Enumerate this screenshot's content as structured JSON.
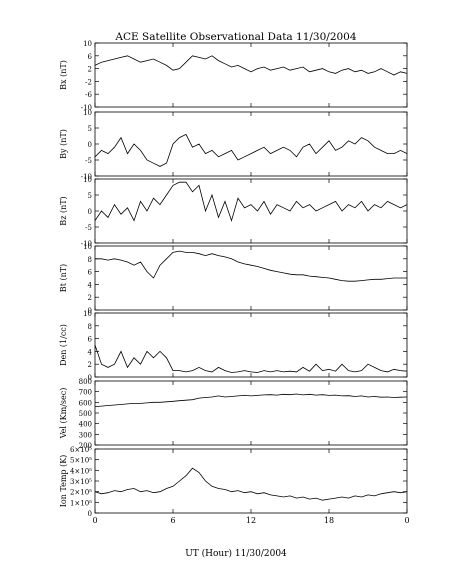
{
  "title": "ACE Satellite Observational Data   11/30/2004",
  "xlabel": "UT (Hour)   11/30/2004",
  "chart_data": {
    "type": "line",
    "title": "ACE Satellite Observational Data   11/30/2004",
    "xlabel": "UT (Hour)   11/30/2004",
    "x_ticks": [
      "0",
      "6",
      "12",
      "18",
      "0"
    ],
    "x_tick_values": [
      0,
      6,
      12,
      18,
      24
    ],
    "xlim": [
      0,
      24
    ],
    "grid": false,
    "panels": [
      {
        "ylabel": "Bx (nT)",
        "ylim": [
          -10,
          10
        ],
        "y_ticks": [
          "10",
          "6",
          "2",
          "-2",
          "-6",
          "-10"
        ],
        "y_tick_values": [
          10,
          6,
          2,
          -2,
          -6,
          -10
        ],
        "x": [
          0,
          0.5,
          1,
          1.5,
          2,
          2.5,
          3,
          3.5,
          4,
          4.5,
          5,
          5.5,
          6,
          6.5,
          7,
          7.5,
          8,
          8.5,
          9,
          9.5,
          10,
          10.5,
          11,
          11.5,
          12,
          12.5,
          13,
          13.5,
          14,
          14.5,
          15,
          15.5,
          16,
          16.5,
          17,
          17.5,
          18,
          18.5,
          19,
          19.5,
          20,
          20.5,
          21,
          21.5,
          22,
          22.5,
          23,
          23.5,
          24
        ],
        "y": [
          3,
          4,
          4.5,
          5,
          5.5,
          6,
          5,
          4,
          4.5,
          5,
          4,
          3,
          1.5,
          2,
          4,
          6,
          5.5,
          5,
          6,
          4.5,
          3.5,
          2.5,
          3,
          2,
          1,
          2,
          2.5,
          1.5,
          2,
          2.5,
          1.5,
          2,
          2.5,
          1,
          1.5,
          2,
          1,
          0.5,
          1.5,
          2,
          1,
          1.5,
          0.5,
          1,
          2,
          1,
          0,
          1,
          0.5
        ]
      },
      {
        "ylabel": "By (nT)",
        "ylim": [
          -10,
          10
        ],
        "y_ticks": [
          "10",
          "5",
          "0",
          "-5",
          "-10"
        ],
        "y_tick_values": [
          10,
          5,
          0,
          -5,
          -10
        ],
        "x": [
          0,
          0.5,
          1,
          1.5,
          2,
          2.5,
          3,
          3.5,
          4,
          4.5,
          5,
          5.5,
          6,
          6.5,
          7,
          7.5,
          8,
          8.5,
          9,
          9.5,
          10,
          10.5,
          11,
          11.5,
          12,
          12.5,
          13,
          13.5,
          14,
          14.5,
          15,
          15.5,
          16,
          16.5,
          17,
          17.5,
          18,
          18.5,
          19,
          19.5,
          20,
          20.5,
          21,
          21.5,
          22,
          22.5,
          23,
          23.5,
          24
        ],
        "y": [
          -4,
          -2,
          -3,
          -1,
          2,
          -3,
          0,
          -2,
          -5,
          -6,
          -7,
          -6,
          0,
          2,
          3,
          -1,
          0,
          -3,
          -2,
          -4,
          -3,
          -2,
          -5,
          -4,
          -3,
          -2,
          -1,
          -3,
          -2,
          -1,
          -2,
          -4,
          -1,
          0,
          -3,
          -1,
          1,
          -2,
          -1,
          1,
          0,
          2,
          1,
          -1,
          -2,
          -3,
          -3,
          -2,
          -3
        ]
      },
      {
        "ylabel": "Bz (nT)",
        "ylim": [
          -10,
          10
        ],
        "y_ticks": [
          "10",
          "5",
          "0",
          "-5",
          "-10"
        ],
        "y_tick_values": [
          10,
          5,
          0,
          -5,
          -10
        ],
        "x": [
          0,
          0.5,
          1,
          1.5,
          2,
          2.5,
          3,
          3.5,
          4,
          4.5,
          5,
          5.5,
          6,
          6.5,
          7,
          7.5,
          8,
          8.5,
          9,
          9.5,
          10,
          10.5,
          11,
          11.5,
          12,
          12.5,
          13,
          13.5,
          14,
          14.5,
          15,
          15.5,
          16,
          16.5,
          17,
          17.5,
          18,
          18.5,
          19,
          19.5,
          20,
          20.5,
          21,
          21.5,
          22,
          22.5,
          23,
          23.5,
          24
        ],
        "y": [
          -3,
          0,
          -2,
          2,
          -1,
          1,
          -3,
          3,
          0,
          4,
          2,
          5,
          8,
          9,
          9,
          6,
          8,
          0,
          5,
          -2,
          3,
          -3,
          4,
          1,
          2,
          0,
          3,
          -1,
          2,
          1,
          0,
          3,
          1,
          2,
          0,
          1,
          2,
          3,
          0,
          2,
          1,
          3,
          0,
          2,
          1,
          3,
          2,
          1,
          2
        ]
      },
      {
        "ylabel": "Bt (nT)",
        "ylim": [
          0,
          10
        ],
        "y_ticks": [
          "10",
          "8",
          "6",
          "4",
          "2",
          "0"
        ],
        "y_tick_values": [
          10,
          8,
          6,
          4,
          2,
          0
        ],
        "x": [
          0,
          0.5,
          1,
          1.5,
          2,
          2.5,
          3,
          3.5,
          4,
          4.5,
          5,
          5.5,
          6,
          6.5,
          7,
          7.5,
          8,
          8.5,
          9,
          9.5,
          10,
          10.5,
          11,
          11.5,
          12,
          12.5,
          13,
          13.5,
          14,
          14.5,
          15,
          15.5,
          16,
          16.5,
          17,
          17.5,
          18,
          18.5,
          19,
          19.5,
          20,
          20.5,
          21,
          21.5,
          22,
          22.5,
          23,
          23.5,
          24
        ],
        "y": [
          8,
          8,
          7.8,
          8,
          7.8,
          7.5,
          7,
          7.5,
          6,
          5,
          7,
          8,
          9,
          9.2,
          9,
          9,
          8.8,
          8.5,
          8.8,
          8.5,
          8.3,
          8,
          7.5,
          7.2,
          7,
          6.8,
          6.5,
          6.2,
          6,
          5.8,
          5.6,
          5.5,
          5.5,
          5.3,
          5.2,
          5.1,
          5,
          4.8,
          4.6,
          4.5,
          4.5,
          4.6,
          4.7,
          4.8,
          4.8,
          4.9,
          5,
          5,
          5
        ]
      },
      {
        "ylabel": "Den (1/cc)",
        "ylim": [
          0,
          10
        ],
        "y_ticks": [
          "10",
          "8",
          "6",
          "4",
          "2",
          "0"
        ],
        "y_tick_values": [
          10,
          8,
          6,
          4,
          2,
          0
        ],
        "x": [
          0,
          0.5,
          1,
          1.5,
          2,
          2.5,
          3,
          3.5,
          4,
          4.5,
          5,
          5.5,
          6,
          6.5,
          7,
          7.5,
          8,
          8.5,
          9,
          9.5,
          10,
          10.5,
          11,
          11.5,
          12,
          12.5,
          13,
          13.5,
          14,
          14.5,
          15,
          15.5,
          16,
          16.5,
          17,
          17.5,
          18,
          18.5,
          19,
          19.5,
          20,
          20.5,
          21,
          21.5,
          22,
          22.5,
          23,
          23.5,
          24
        ],
        "y": [
          5,
          2,
          1.5,
          2,
          4,
          1.5,
          3,
          2,
          4,
          3,
          4,
          3,
          1,
          1,
          0.8,
          1,
          1.5,
          1,
          0.8,
          1.5,
          1,
          0.7,
          0.8,
          1,
          0.8,
          0.7,
          1,
          0.8,
          1,
          0.8,
          0.9,
          0.8,
          1.5,
          0.9,
          2,
          1,
          1.2,
          0.9,
          2,
          1,
          0.8,
          1,
          2,
          1.5,
          1,
          0.8,
          1.2,
          1,
          0.9
        ]
      },
      {
        "ylabel": "Vel (Km/sec)",
        "ylim": [
          200,
          800
        ],
        "y_ticks": [
          "800",
          "700",
          "600",
          "500",
          "400",
          "300",
          "200"
        ],
        "y_tick_values": [
          800,
          700,
          600,
          500,
          400,
          300,
          200
        ],
        "x": [
          0,
          0.5,
          1,
          1.5,
          2,
          2.5,
          3,
          3.5,
          4,
          4.5,
          5,
          5.5,
          6,
          6.5,
          7,
          7.5,
          8,
          8.5,
          9,
          9.5,
          10,
          10.5,
          11,
          11.5,
          12,
          12.5,
          13,
          13.5,
          14,
          14.5,
          15,
          15.5,
          16,
          16.5,
          17,
          17.5,
          18,
          18.5,
          19,
          19.5,
          20,
          20.5,
          21,
          21.5,
          22,
          22.5,
          23,
          23.5,
          24
        ],
        "y": [
          560,
          565,
          570,
          575,
          580,
          585,
          590,
          590,
          595,
          600,
          600,
          605,
          610,
          615,
          620,
          625,
          640,
          645,
          650,
          660,
          650,
          655,
          660,
          665,
          660,
          665,
          670,
          672,
          668,
          675,
          672,
          678,
          670,
          675,
          668,
          672,
          665,
          668,
          660,
          662,
          655,
          660,
          650,
          655,
          648,
          650,
          645,
          648,
          650
        ]
      },
      {
        "ylabel": "Ion Temp (K)",
        "ylim": [
          0,
          600000
        ],
        "y_ticks": [
          "6×10⁵",
          "5×10⁵",
          "4×10⁵",
          "3×10⁵",
          "2×10⁵",
          "1×10⁵",
          "0"
        ],
        "y_tick_values": [
          600000,
          500000,
          400000,
          300000,
          200000,
          100000,
          0
        ],
        "x": [
          0,
          0.5,
          1,
          1.5,
          2,
          2.5,
          3,
          3.5,
          4,
          4.5,
          5,
          5.5,
          6,
          6.5,
          7,
          7.5,
          8,
          8.5,
          9,
          9.5,
          10,
          10.5,
          11,
          11.5,
          12,
          12.5,
          13,
          13.5,
          14,
          14.5,
          15,
          15.5,
          16,
          16.5,
          17,
          17.5,
          18,
          18.5,
          19,
          19.5,
          20,
          20.5,
          21,
          21.5,
          22,
          22.5,
          23,
          23.5,
          24
        ],
        "y": [
          200000,
          180000,
          190000,
          210000,
          200000,
          220000,
          230000,
          200000,
          210000,
          190000,
          200000,
          230000,
          250000,
          300000,
          350000,
          420000,
          380000,
          300000,
          250000,
          230000,
          220000,
          200000,
          210000,
          190000,
          200000,
          180000,
          190000,
          170000,
          160000,
          150000,
          160000,
          140000,
          150000,
          130000,
          140000,
          120000,
          130000,
          140000,
          150000,
          140000,
          160000,
          150000,
          170000,
          160000,
          180000,
          190000,
          200000,
          190000,
          200000
        ]
      }
    ]
  }
}
